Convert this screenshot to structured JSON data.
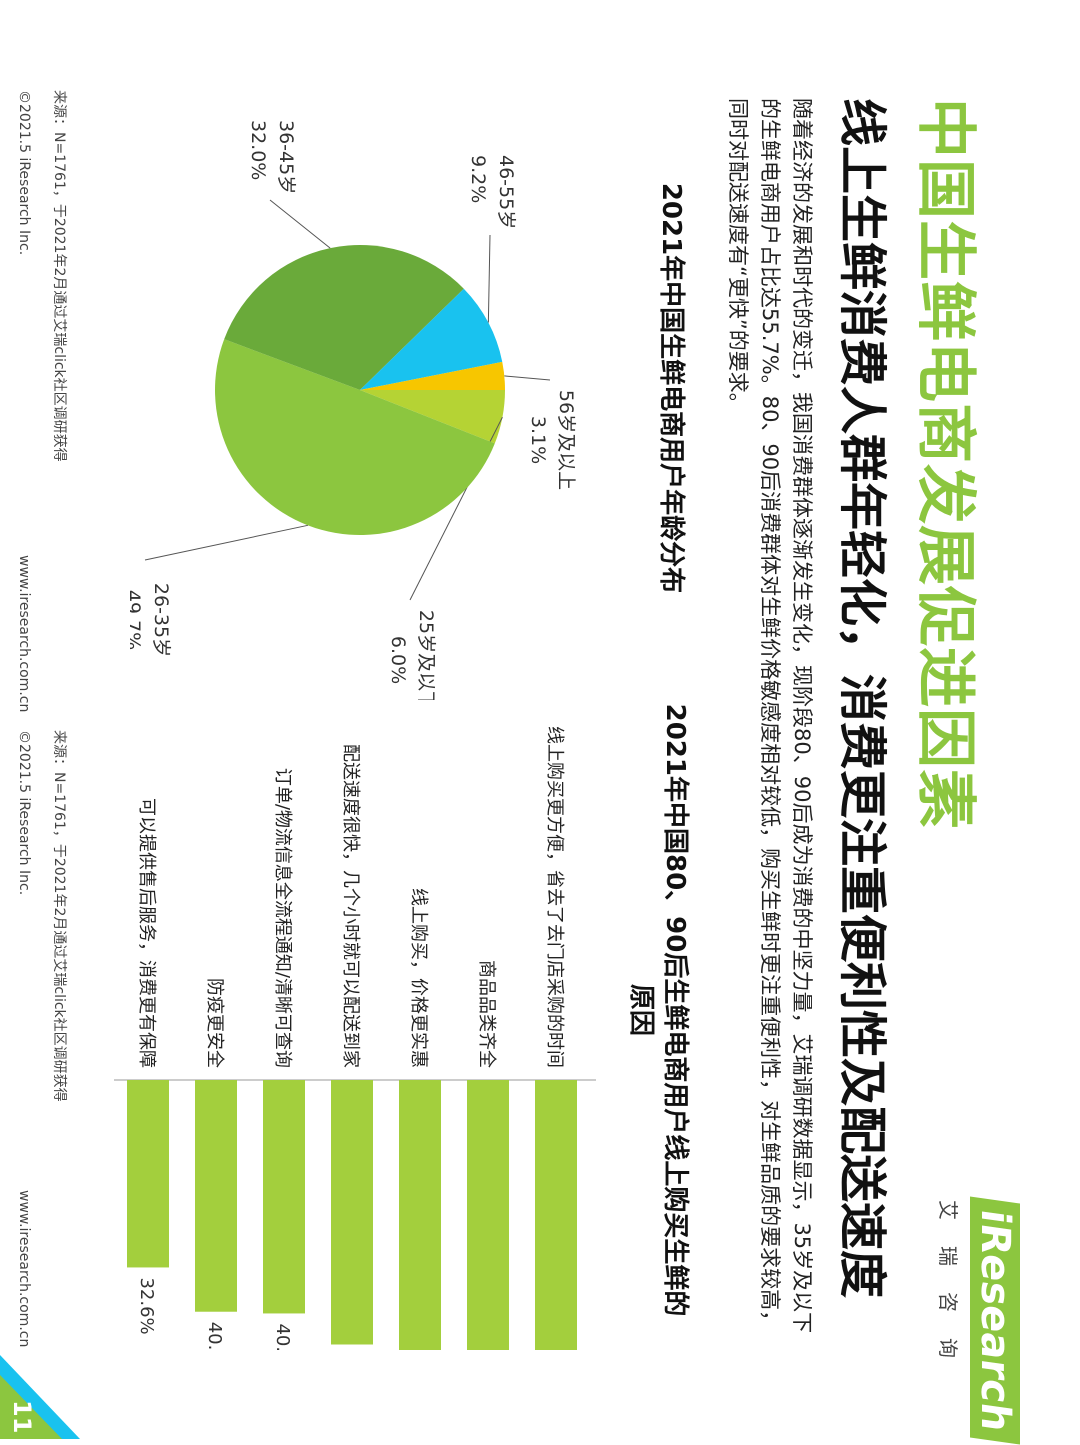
{
  "header": {
    "title": "中国生鲜电商发展促进因素",
    "subtitle": "线上生鲜消费人群年轻化，消费更注重便利性及配送速度",
    "paragraph": "随着经济的发展和时代的变迁，我国消费群体逐渐发生变化，现阶段80、90后成为消费的中坚力量，艾瑞调研数据显示，35岁及以下的生鲜电商用户占比达55.7%。80、90后消费群体对生鲜价格敏感度相对较低，购买生鲜时更注重便利性，对生鲜品质的要求较高，同时对配送速度有“更快”的要求。"
  },
  "logo": {
    "brand": "iResearch",
    "sub": "艾瑞咨询"
  },
  "colors": {
    "accent_green": "#8cc63f",
    "dark_green": "#6aaa3a",
    "pie_light_green": "#b5d334",
    "pie_yellow": "#f7c600",
    "pie_cyan": "#19c2ef",
    "bar_green": "#a3cf3d"
  },
  "pie_chart": {
    "title": "2021年中国生鲜电商用户年龄分布",
    "source": "来源：N=1761，于2021年2月通过艾瑞click社区调研获得",
    "copyright": "©2021.5 iResearch Inc.",
    "url": "www.iresearch.com.cn"
  },
  "bar_chart": {
    "title_line1": "2021年中国80、90后生鲜电商用户线上购买生鲜的",
    "title_line2": "原因",
    "source": "来源：N=1761，于2021年2月通过艾瑞click社区调研获得",
    "copyright": "©2021.5 iResearch Inc.",
    "url": "www.iresearch.com.cn"
  },
  "page_number": "11",
  "chart_data": [
    {
      "type": "pie",
      "title": "2021年中国生鲜电商用户年龄分布",
      "slices": [
        {
          "label": "25岁及以下",
          "value": 6.0,
          "display": "6.0%",
          "color": "#b5d334"
        },
        {
          "label": "26-35岁",
          "value": 49.7,
          "display": "49.7%",
          "color": "#8cc63f"
        },
        {
          "label": "36-45岁",
          "value": 32.0,
          "display": "32.0%",
          "color": "#6aaa3a"
        },
        {
          "label": "46-55岁",
          "value": 9.2,
          "display": "9.2%",
          "color": "#19c2ef"
        },
        {
          "label": "56岁及以上",
          "value": 3.1,
          "display": "3.1%",
          "color": "#f7c600"
        }
      ]
    },
    {
      "type": "bar",
      "orientation": "horizontal",
      "title": "2021年中国80、90后生鲜电商用户线上购买生鲜的原因",
      "categories": [
        "线上购买更方便，省去了去门店采购的时间",
        "商品品类齐全",
        "线上购买，价格更实惠",
        "配送速度很快，几个小时就可以配送到家",
        "订单/物流信息全流程通知/清晰可查询",
        "防疫更安全",
        "可以提供售后服务，消费更有保障"
      ],
      "values": [
        59.2,
        55.8,
        50.5,
        46.0,
        40.6,
        40.3,
        32.6
      ],
      "value_labels": [
        "59.2%",
        "55.8%",
        "50.5%",
        "46.0%",
        "40.6%",
        "40.3%",
        "32.6%"
      ],
      "xlim": [
        0,
        100
      ]
    }
  ]
}
